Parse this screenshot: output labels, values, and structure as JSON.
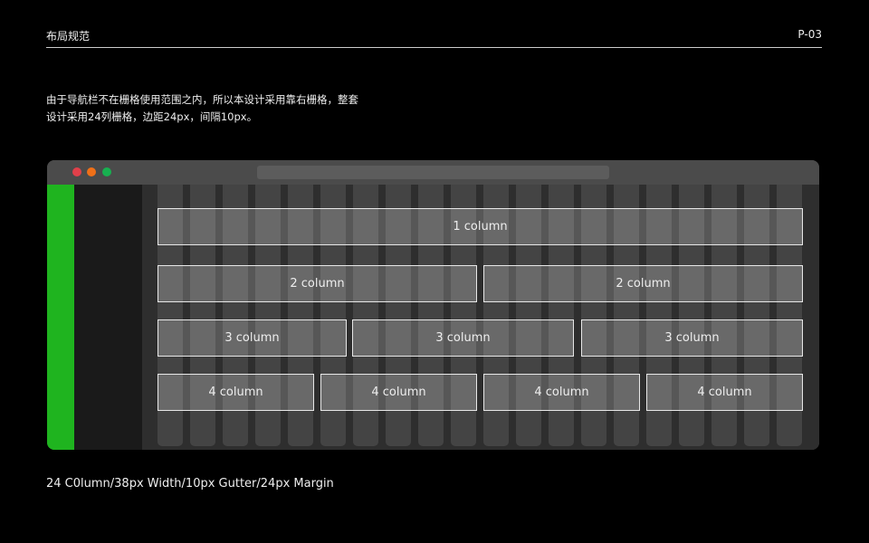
{
  "header": {
    "title": "布局规范",
    "page": "P-03"
  },
  "description": [
    "由于导航栏不在栅格使用范围之内，所以本设计采用靠右栅格，整套",
    "设计采用24列栅格，边距24px，间隔10px。"
  ],
  "window": {
    "traffic_lights": {
      "close": "#e0404a",
      "minimize": "#f07018",
      "maximize": "#18b050"
    },
    "nav_color": "#1fb41f",
    "rows": [
      [
        "1 column"
      ],
      [
        "2 column",
        "2 column"
      ],
      [
        "3 column",
        "3 column",
        "3 column"
      ],
      [
        "4 column",
        "4 column",
        "4 column",
        "4 column"
      ]
    ]
  },
  "footer": "24 C0lumn/38px Width/10px Gutter/24px Margin"
}
